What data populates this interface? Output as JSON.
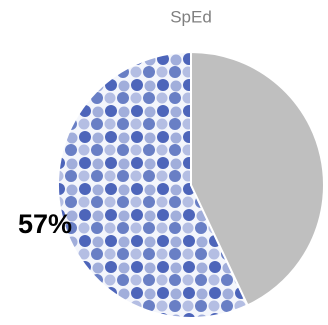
{
  "chart_data": {
    "type": "pie",
    "title": "SpEd",
    "values": [
      57,
      43
    ],
    "value_labels": [
      "57%",
      null
    ],
    "colors": [
      "#3b56b3",
      "#bfbfbf"
    ]
  }
}
